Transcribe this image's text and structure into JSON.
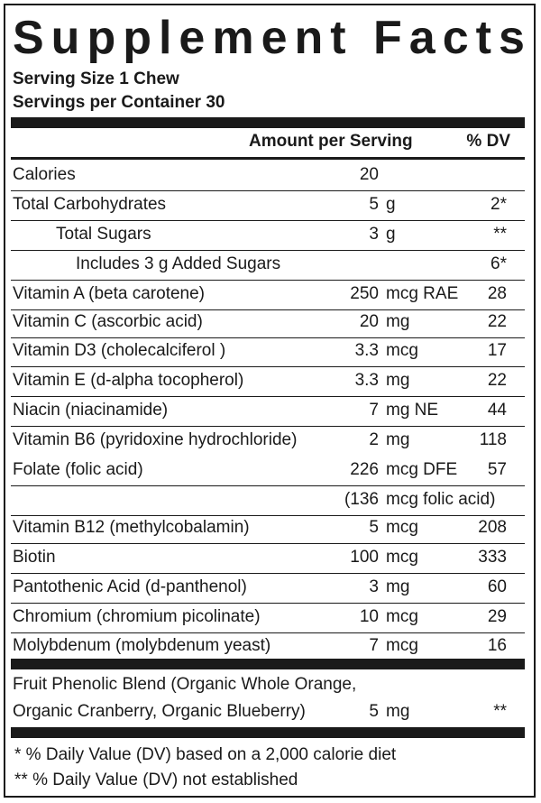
{
  "title": "Supplement Facts",
  "serving_size": "Serving Size 1 Chew",
  "servings_per_container": "Servings per Container 30",
  "header": {
    "amount": "Amount per Serving",
    "dv": "% DV"
  },
  "rows": [
    {
      "name": "Calories",
      "amount": "20",
      "unit": "",
      "dv": ""
    },
    {
      "name": "Total Carbohydrates",
      "amount": "5",
      "unit": "g",
      "dv": "2*"
    },
    {
      "name": "Total Sugars",
      "amount": "3",
      "unit": "g",
      "dv": "**"
    },
    {
      "name": "Includes 3 g Added Sugars",
      "amount": "",
      "unit": "",
      "dv": "6*"
    },
    {
      "name": "Vitamin A (beta carotene)",
      "amount": "250",
      "unit": "mcg RAE",
      "dv": "28"
    },
    {
      "name": "Vitamin C (ascorbic acid)",
      "amount": "20",
      "unit": "mg",
      "dv": "22"
    },
    {
      "name": "Vitamin D3 (cholecalciferol )",
      "amount": "3.3",
      "unit": "mcg",
      "dv": "17"
    },
    {
      "name": "Vitamin E (d-alpha tocopherol)",
      "amount": "3.3",
      "unit": "mg",
      "dv": "22"
    },
    {
      "name": "Niacin (niacinamide)",
      "amount": "7",
      "unit": "mg NE",
      "dv": "44"
    },
    {
      "name": "Vitamin B6 (pyridoxine hydrochloride)",
      "amount": "2",
      "unit": "mg",
      "dv": "118"
    },
    {
      "name": "Folate (folic acid)",
      "amount": "226",
      "unit": "mcg DFE",
      "dv": "57"
    },
    {
      "name": "",
      "amount": "(136",
      "unit": "mcg folic acid)",
      "dv": ""
    },
    {
      "name": "Vitamin B12 (methylcobalamin)",
      "amount": "5",
      "unit": "mcg",
      "dv": "208"
    },
    {
      "name": "Biotin",
      "amount": "100",
      "unit": "mcg",
      "dv": "333"
    },
    {
      "name": "Pantothenic Acid (d-panthenol)",
      "amount": "3",
      "unit": "mg",
      "dv": "60"
    },
    {
      "name": "Chromium (chromium picolinate)",
      "amount": "10",
      "unit": "mcg",
      "dv": "29"
    },
    {
      "name": "Molybdenum (molybdenum yeast)",
      "amount": "7",
      "unit": "mcg",
      "dv": "16"
    }
  ],
  "blend": {
    "line1": "Fruit Phenolic Blend (Organic Whole Orange,",
    "line2": "Organic Cranberry, Organic Blueberry)",
    "amount": "5",
    "unit": "mg",
    "dv": "**"
  },
  "footnotes": [
    "*  % Daily Value (DV) based on a 2,000 calorie diet",
    "**  % Daily Value (DV) not established"
  ]
}
